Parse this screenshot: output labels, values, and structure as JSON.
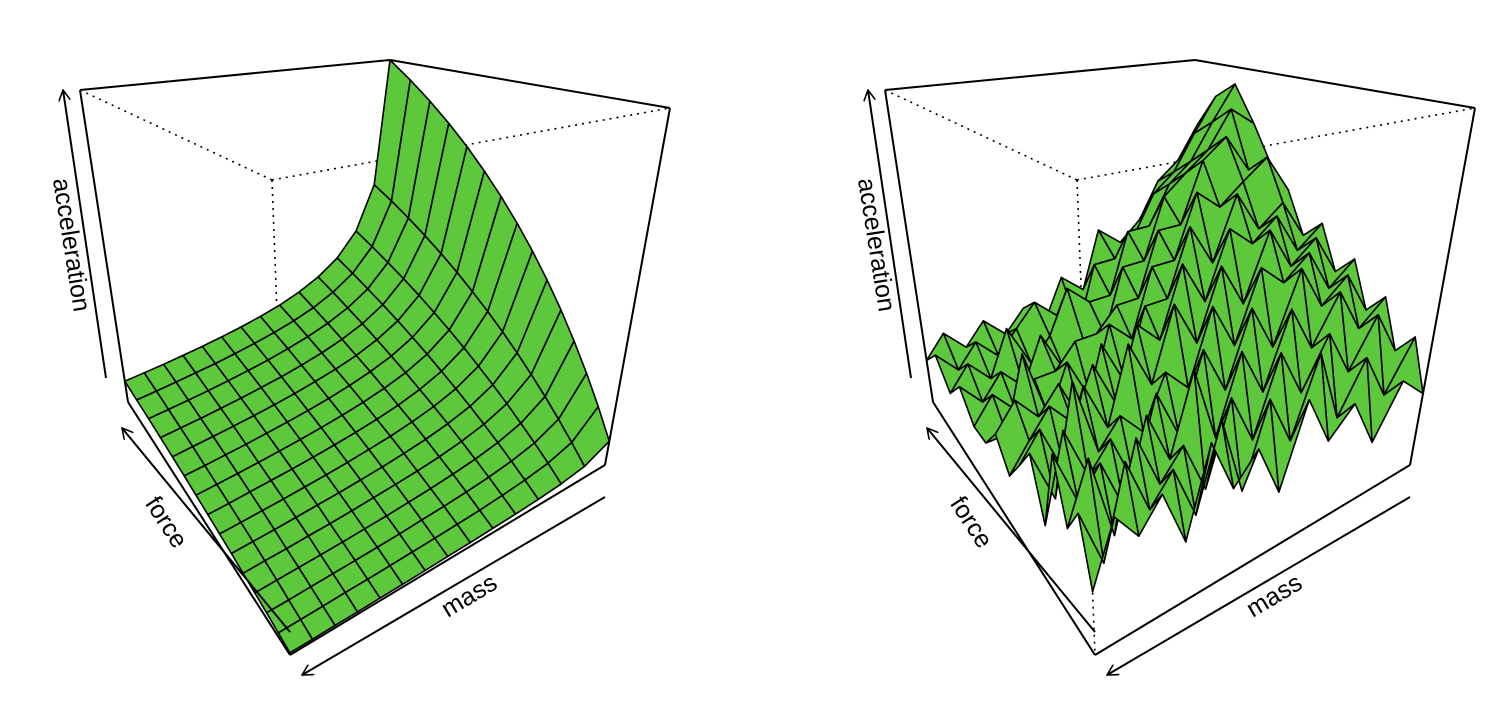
{
  "chart_data": [
    {
      "type": "surface",
      "x_label": "mass",
      "y_label": "force",
      "z_label": "acceleration",
      "color": "#5ec83c",
      "x": [
        1,
        2,
        3,
        4,
        5,
        6,
        7,
        8,
        9,
        10,
        11,
        12,
        13,
        14,
        15
      ],
      "y": [
        1,
        2,
        3,
        4,
        5,
        6,
        7,
        8,
        9,
        10,
        11,
        12,
        13,
        14,
        15
      ],
      "xlim": [
        1,
        15
      ],
      "ylim": [
        1,
        15
      ],
      "zlim": [
        0,
        15
      ],
      "z": [
        [
          1,
          2,
          3,
          4,
          5,
          6,
          7,
          8,
          9,
          10,
          11,
          12,
          13,
          14,
          15
        ],
        [
          0.5,
          1,
          1.5,
          2,
          2.5,
          3,
          3.5,
          4,
          4.5,
          5,
          5.5,
          6,
          6.5,
          7,
          7.5
        ],
        [
          0.33,
          0.67,
          1,
          1.33,
          1.67,
          2,
          2.33,
          2.67,
          3,
          3.33,
          3.67,
          4,
          4.33,
          4.67,
          5
        ],
        [
          0.25,
          0.5,
          0.75,
          1,
          1.25,
          1.5,
          1.75,
          2,
          2.25,
          2.5,
          2.75,
          3,
          3.25,
          3.5,
          3.75
        ],
        [
          0.2,
          0.4,
          0.6,
          0.8,
          1,
          1.2,
          1.4,
          1.6,
          1.8,
          2,
          2.2,
          2.4,
          2.6,
          2.8,
          3
        ],
        [
          0.17,
          0.33,
          0.5,
          0.67,
          0.83,
          1,
          1.17,
          1.33,
          1.5,
          1.67,
          1.83,
          2,
          2.17,
          2.33,
          2.5
        ],
        [
          0.14,
          0.29,
          0.43,
          0.57,
          0.71,
          0.86,
          1,
          1.14,
          1.29,
          1.43,
          1.57,
          1.71,
          1.86,
          2,
          2.14
        ],
        [
          0.13,
          0.25,
          0.38,
          0.5,
          0.63,
          0.75,
          0.88,
          1,
          1.13,
          1.25,
          1.38,
          1.5,
          1.63,
          1.75,
          1.88
        ],
        [
          0.11,
          0.22,
          0.33,
          0.44,
          0.56,
          0.67,
          0.78,
          0.89,
          1,
          1.11,
          1.22,
          1.33,
          1.44,
          1.56,
          1.67
        ],
        [
          0.1,
          0.2,
          0.3,
          0.4,
          0.5,
          0.6,
          0.7,
          0.8,
          0.9,
          1,
          1.1,
          1.2,
          1.3,
          1.4,
          1.5
        ],
        [
          0.09,
          0.18,
          0.27,
          0.36,
          0.45,
          0.55,
          0.64,
          0.73,
          0.82,
          0.91,
          1,
          1.09,
          1.18,
          1.27,
          1.36
        ],
        [
          0.08,
          0.17,
          0.25,
          0.33,
          0.42,
          0.5,
          0.58,
          0.67,
          0.75,
          0.83,
          0.92,
          1,
          1.08,
          1.17,
          1.25
        ],
        [
          0.08,
          0.15,
          0.23,
          0.31,
          0.38,
          0.46,
          0.54,
          0.62,
          0.69,
          0.77,
          0.85,
          0.92,
          1,
          1.08,
          1.15
        ],
        [
          0.07,
          0.14,
          0.21,
          0.29,
          0.36,
          0.43,
          0.5,
          0.57,
          0.64,
          0.71,
          0.79,
          0.86,
          0.93,
          1,
          1.07
        ],
        [
          0.07,
          0.13,
          0.2,
          0.27,
          0.33,
          0.4,
          0.47,
          0.53,
          0.6,
          0.67,
          0.73,
          0.8,
          0.87,
          0.93,
          1
        ]
      ]
    },
    {
      "type": "surface",
      "x_label": "mass",
      "y_label": "force",
      "z_label": "acceleration",
      "color": "#5ec83c",
      "x": [
        1,
        2,
        3,
        4,
        5,
        6,
        7,
        8,
        9,
        10,
        11,
        12,
        13,
        14,
        15
      ],
      "y": [
        1,
        2,
        3,
        4,
        5,
        6,
        7,
        8,
        9,
        10,
        11,
        12,
        13,
        14,
        15
      ],
      "xlim": [
        1,
        15
      ],
      "ylim": [
        1,
        15
      ],
      "zlim": [
        0,
        15
      ],
      "z": [
        [
          3,
          5,
          4,
          6,
          5,
          7,
          6,
          8,
          7,
          9,
          10,
          12,
          14,
          13,
          11
        ],
        [
          4,
          3,
          6,
          5,
          7,
          6,
          8,
          7,
          9,
          11,
          10,
          13,
          12,
          11,
          9
        ],
        [
          2,
          5,
          4,
          7,
          6,
          8,
          7,
          9,
          8,
          10,
          12,
          11,
          10,
          9,
          8
        ],
        [
          4,
          3,
          6,
          5,
          8,
          7,
          9,
          8,
          10,
          9,
          11,
          10,
          9,
          8,
          6
        ],
        [
          3,
          6,
          4,
          7,
          5,
          8,
          6,
          9,
          7,
          10,
          8,
          9,
          7,
          6,
          5
        ],
        [
          5,
          3,
          6,
          4,
          7,
          5,
          8,
          6,
          9,
          7,
          8,
          6,
          7,
          5,
          6
        ],
        [
          2,
          5,
          3,
          6,
          4,
          7,
          5,
          8,
          6,
          7,
          5,
          6,
          4,
          5,
          3
        ],
        [
          4,
          2,
          5,
          3,
          6,
          4,
          7,
          5,
          6,
          4,
          5,
          3,
          4,
          2,
          4
        ],
        [
          3,
          5,
          2,
          6,
          3,
          5,
          4,
          6,
          3,
          5,
          4,
          3,
          5,
          3,
          2
        ],
        [
          5,
          2,
          4,
          3,
          5,
          3,
          6,
          3,
          5,
          2,
          4,
          2,
          3,
          4,
          3
        ],
        [
          2,
          4,
          3,
          5,
          2,
          4,
          3,
          5,
          2,
          4,
          3,
          4,
          2,
          3,
          2
        ],
        [
          4,
          3,
          5,
          2,
          4,
          3,
          5,
          3,
          4,
          2,
          3,
          2,
          4,
          2,
          3
        ],
        [
          3,
          5,
          2,
          4,
          3,
          6,
          2,
          4,
          3,
          5,
          2,
          3,
          2,
          3,
          2
        ],
        [
          4,
          2,
          5,
          3,
          5,
          2,
          4,
          3,
          4,
          2,
          3,
          2,
          3,
          2,
          3
        ],
        [
          2,
          4,
          3,
          5,
          2,
          4,
          3,
          2,
          3,
          2,
          2,
          3,
          2,
          3,
          2
        ]
      ]
    }
  ]
}
